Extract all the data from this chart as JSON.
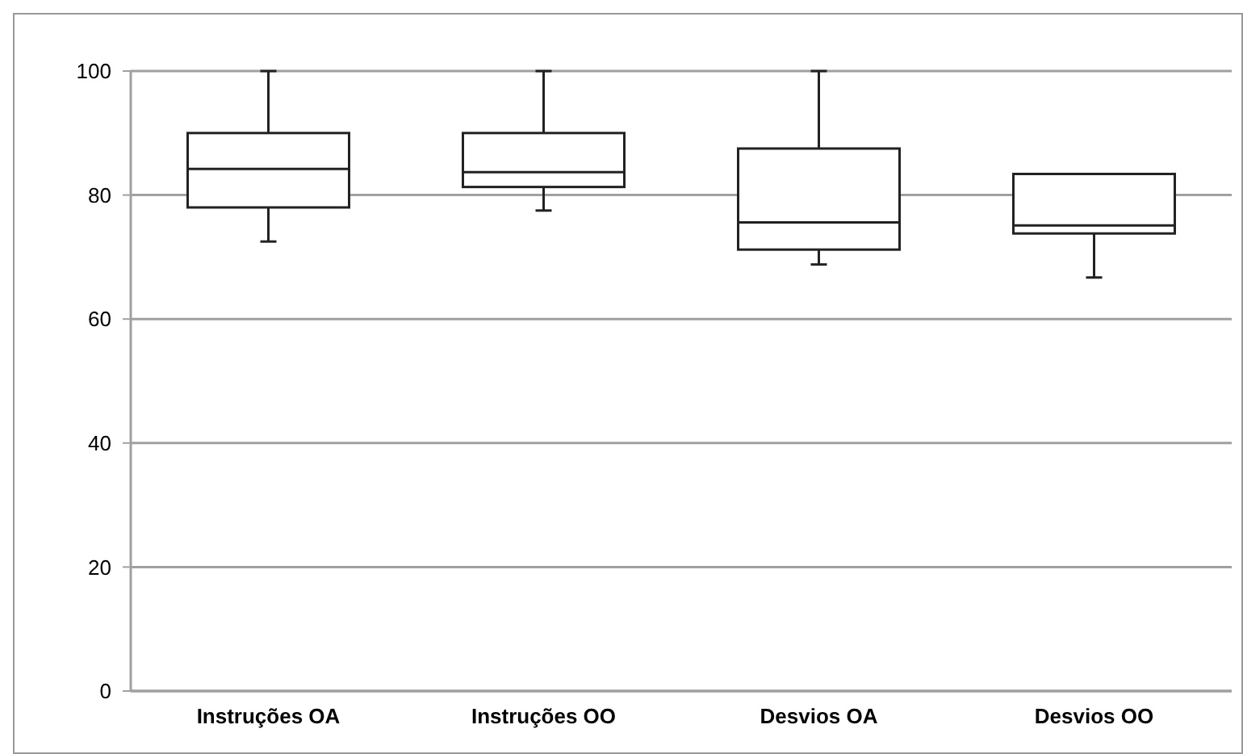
{
  "chart_data": {
    "type": "box",
    "categories": [
      "Instruções OA",
      "Instruções OO",
      "Desvios OA",
      "Desvios OO"
    ],
    "boxes": [
      {
        "low": 72.5,
        "q1": 78,
        "median": 84.2,
        "q3": 90,
        "high": 100
      },
      {
        "low": 77.5,
        "q1": 81.3,
        "median": 83.7,
        "q3": 90,
        "high": 100
      },
      {
        "low": 68.8,
        "q1": 71.2,
        "median": 75.6,
        "q3": 87.5,
        "high": 100
      },
      {
        "low": 66.7,
        "q1": 73.8,
        "median": 75.1,
        "q3": 83.4,
        "high": 83.4
      }
    ],
    "ylim": [
      0,
      100
    ],
    "yticks": [
      0,
      20,
      40,
      60,
      80,
      100
    ],
    "grid": "y"
  }
}
